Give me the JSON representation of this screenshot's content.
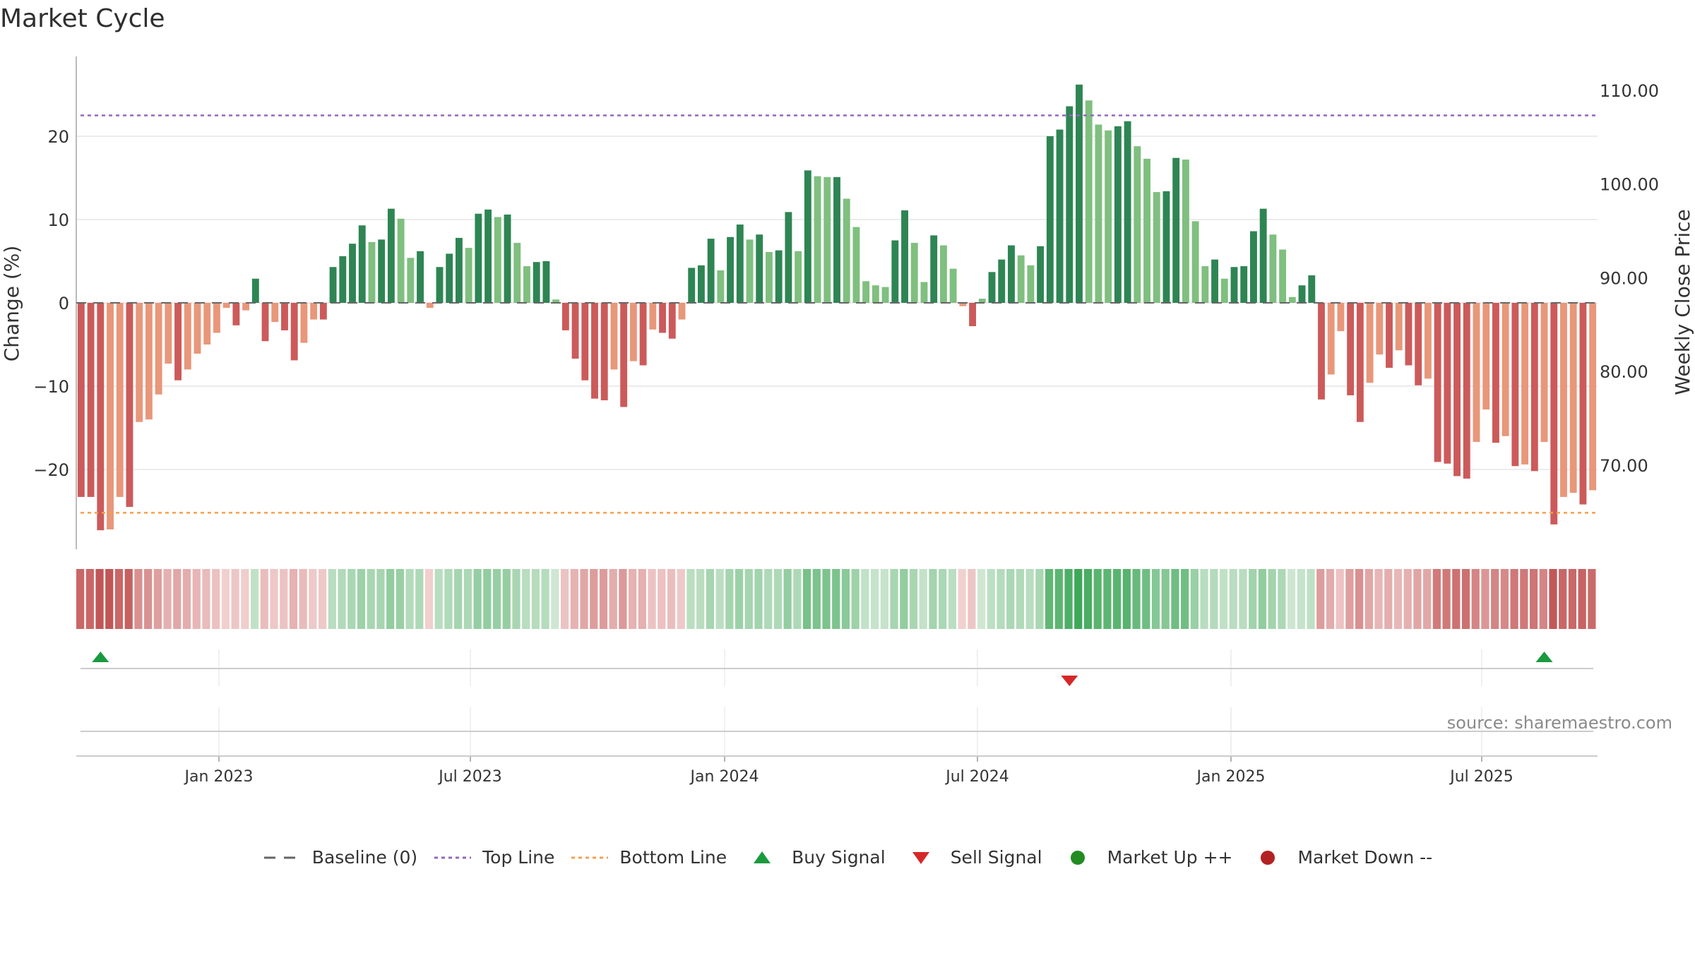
{
  "chart_data": {
    "type": "bar",
    "title": "Market Cycle",
    "ylabel_left": "Change (%)",
    "ylabel_right": "Weekly Close Price",
    "y_ticks_left": [
      "20",
      "10",
      "0",
      "−10",
      "−20"
    ],
    "y_tick_values_left": [
      20,
      10,
      0,
      -10,
      -20
    ],
    "y_ticks_right": [
      "110.00",
      "100.00",
      "90.00",
      "80.00",
      "70.00"
    ],
    "y_tick_values_right": [
      110,
      100,
      90,
      80,
      70
    ],
    "ylim": [
      -29,
      30
    ],
    "x_ticks": [
      "Jan 2023",
      "Jul 2023",
      "Jan 2024",
      "Jul 2024",
      "Jan 2025",
      "Jul 2025"
    ],
    "top_line": 22.5,
    "bottom_line": -25.2,
    "baseline": 0,
    "values": [
      -23.3,
      -23.3,
      -27.3,
      -27.2,
      -23.3,
      -24.5,
      -14.3,
      -14,
      -11,
      -7.3,
      -9.3,
      -8,
      -6.1,
      -5,
      -3.6,
      -0.6,
      -2.7,
      -0.9,
      2.9,
      -4.6,
      -2.3,
      -3.3,
      -6.9,
      -4.8,
      -2,
      -2,
      4.3,
      5.6,
      7.1,
      9.3,
      7.3,
      7.6,
      11.3,
      10.1,
      5.4,
      6.2,
      -0.6,
      4.3,
      5.9,
      7.8,
      6.6,
      10.7,
      11.2,
      10.3,
      10.6,
      7.2,
      4.4,
      4.9,
      5,
      0.4,
      -3.3,
      -6.7,
      -9.3,
      -11.5,
      -11.7,
      -8,
      -12.5,
      -7,
      -7.5,
      -3.2,
      -3.6,
      -4.3,
      -2,
      4.2,
      4.5,
      7.7,
      3.9,
      7.9,
      9.4,
      7.6,
      8.2,
      6.1,
      6.3,
      10.9,
      6.2,
      15.9,
      15.2,
      15.1,
      15.1,
      12.5,
      9.1,
      2.6,
      2.1,
      1.9,
      7.5,
      11.1,
      7.2,
      2.5,
      8.1,
      6.9,
      4.1,
      -0.4,
      -2.8,
      0.5,
      3.7,
      5.2,
      6.9,
      5.7,
      4.5,
      6.8,
      20,
      20.8,
      23.6,
      26.2,
      24.3,
      21.4,
      20.7,
      21.2,
      21.8,
      18.8,
      17.3,
      13.3,
      13.4,
      17.4,
      17.2,
      9.8,
      4.4,
      5.2,
      2.9,
      4.3,
      4.4,
      8.6,
      11.3,
      8.2,
      6.4,
      0.7,
      2.1,
      3.3,
      -11.6,
      -8.6,
      -3.4,
      -11.1,
      -14.3,
      -9.6,
      -6.2,
      -7.8,
      -5.7,
      -7.5,
      -9.9,
      -9.1,
      -19.1,
      -19.3,
      -20.8,
      -21.1,
      -16.7,
      -12.8,
      -16.8,
      -16,
      -19.6,
      -19.4,
      -20.2,
      -16.7,
      -26.6,
      -23.3,
      -22.8,
      -24.2,
      -22.5
    ],
    "buy_signals_index": [
      2,
      151
    ],
    "sell_signals_index": [
      102
    ],
    "legend": [
      "Baseline (0)",
      "Top Line",
      "Bottom Line",
      "Buy Signal",
      "Sell Signal",
      "Market Up ++",
      "Market Down --"
    ]
  },
  "colors": {
    "up_strong": "#2e8553",
    "up_weak": "#7fbf7f",
    "down_strong": "#cc5a5a",
    "down_weak": "#e8977a",
    "top_line": "#9467bd",
    "bottom_line": "#f4a04c",
    "buy": "#1a9a3e",
    "sell": "#d62728",
    "market_up": "#228b22",
    "market_down": "#b22222",
    "baseline": "#666666"
  },
  "source": "source: sharemaestro.com"
}
